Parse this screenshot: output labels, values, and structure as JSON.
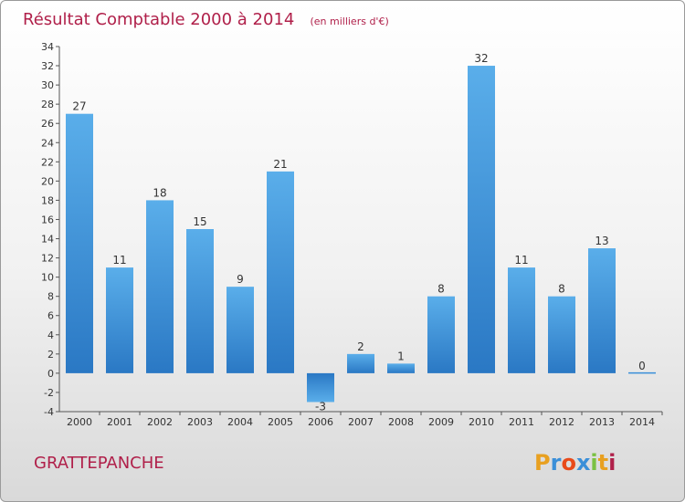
{
  "chart_data": {
    "type": "bar",
    "title": "Résultat Comptable 2000 à 2014",
    "unit": "(en milliers d'€)",
    "categories": [
      "2000",
      "2001",
      "2002",
      "2003",
      "2004",
      "2005",
      "2006",
      "2007",
      "2008",
      "2009",
      "2010",
      "2011",
      "2012",
      "2013",
      "2014"
    ],
    "values": [
      27,
      11,
      18,
      15,
      9,
      21,
      -3,
      2,
      1,
      8,
      32,
      11,
      8,
      13,
      0
    ],
    "value_labels": [
      "27",
      "11",
      "18",
      "15",
      "9",
      "21",
      "-3",
      "2",
      "1",
      "8",
      "32",
      "11",
      "8",
      "13",
      "0"
    ],
    "ylim": [
      -4,
      34
    ],
    "yticks": [
      -4,
      -2,
      0,
      2,
      4,
      6,
      8,
      10,
      12,
      14,
      16,
      18,
      20,
      22,
      24,
      26,
      28,
      30,
      32,
      34
    ],
    "grid": false,
    "bar_color": "#3a8fd8",
    "bar_color_light": "#5aaeea",
    "bar_color_dark": "#2a78c4"
  },
  "commune": "GRATTEPANCHE",
  "logo": {
    "letters": [
      "P",
      "r",
      "o",
      "x",
      "i",
      "t",
      "i"
    ],
    "colors": [
      "#e8a020",
      "#3a8fd8",
      "#e84a1a",
      "#3a8fd8",
      "#7ac142",
      "#e8a020",
      "#b0204a"
    ]
  }
}
